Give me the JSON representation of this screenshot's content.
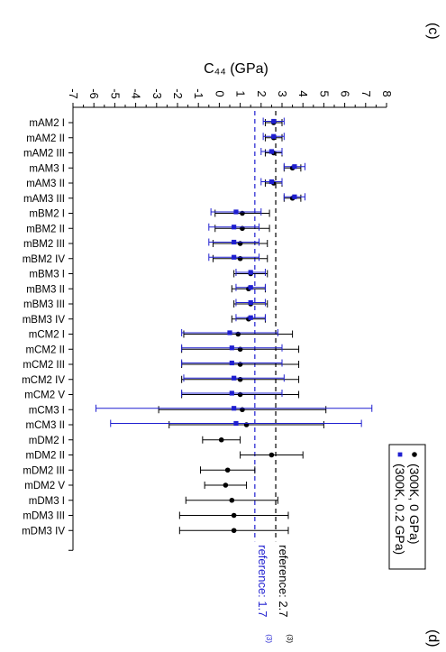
{
  "panel_labels": {
    "top": "(c)",
    "bottom": "(d)"
  },
  "chart_data": {
    "type": "scatter",
    "orientation": "horizontal-errorbars",
    "title": "",
    "xlabel": "C₄₄ (GPa)",
    "xlim": [
      -7,
      8
    ],
    "xticks": [
      "-7",
      "-6",
      "-5",
      "-4",
      "-3",
      "-2",
      "-1",
      "0",
      "1",
      "2",
      "3",
      "4",
      "5",
      "6",
      "7",
      "8"
    ],
    "categories": [
      "mAM2 I",
      "mAM2 II",
      "mAM2 III",
      "mAM3 I",
      "mAM3 II",
      "mAM3 III",
      "mBM2 I",
      "mBM2 II",
      "mBM2 III",
      "mBM2 IV",
      "mBM3 I",
      "mBM3 II",
      "mBM3 III",
      "mBM3 IV",
      "mCM2 I",
      "mCM2 II",
      "mCM2 III",
      "mCM2 IV",
      "mCM2 V",
      "mCM3 I",
      "mCM3 II",
      "mDM2 I",
      "mDM2 II",
      "mDM2 III",
      "mDM2 V",
      "mDM3 I",
      "mDM3 III",
      "mDM3 IV"
    ],
    "series": [
      {
        "name": "(300K, 0 GPa)",
        "color": "#000000",
        "marker": "circle",
        "values": [
          2.6,
          2.6,
          2.6,
          3.5,
          2.6,
          3.5,
          1.1,
          1.1,
          1.0,
          1.0,
          1.5,
          1.4,
          1.5,
          1.4,
          0.9,
          1.0,
          1.0,
          1.0,
          1.0,
          1.1,
          1.3,
          0.1,
          2.5,
          0.4,
          0.3,
          0.6,
          0.7,
          0.7
        ],
        "err_low": [
          0.4,
          0.4,
          0.4,
          0.4,
          0.4,
          0.4,
          1.3,
          1.3,
          1.3,
          1.3,
          0.8,
          0.8,
          0.8,
          0.8,
          2.6,
          2.8,
          2.8,
          2.8,
          2.8,
          4.0,
          3.7,
          0.9,
          1.5,
          1.3,
          1.0,
          2.2,
          2.6,
          2.6
        ],
        "err_high": [
          0.4,
          0.4,
          0.4,
          0.4,
          0.4,
          0.4,
          1.3,
          1.3,
          1.3,
          1.3,
          0.8,
          0.8,
          0.8,
          0.8,
          2.6,
          2.8,
          2.8,
          2.8,
          2.8,
          4.0,
          3.7,
          0.9,
          1.5,
          1.3,
          1.0,
          2.2,
          2.6,
          2.6
        ]
      },
      {
        "name": "(300K, 0.2 GPa)",
        "color": "#1f1fd0",
        "marker": "square",
        "values": [
          2.6,
          2.6,
          2.5,
          3.6,
          2.5,
          3.6,
          0.8,
          0.7,
          0.7,
          0.7,
          1.5,
          1.5,
          1.5,
          1.5,
          0.5,
          0.6,
          0.6,
          0.7,
          0.6,
          0.7,
          0.8,
          null,
          null,
          null,
          null,
          null,
          null,
          null
        ],
        "err_low": [
          0.5,
          0.5,
          0.5,
          0.5,
          0.5,
          0.5,
          1.2,
          1.2,
          1.2,
          1.2,
          0.7,
          0.7,
          0.7,
          0.7,
          2.3,
          2.4,
          2.4,
          2.4,
          2.4,
          6.6,
          6.0,
          null,
          null,
          null,
          null,
          null,
          null,
          null
        ],
        "err_high": [
          0.5,
          0.5,
          0.5,
          0.5,
          0.5,
          0.5,
          1.2,
          1.2,
          1.2,
          1.2,
          0.7,
          0.7,
          0.7,
          0.7,
          2.3,
          2.4,
          2.4,
          2.4,
          2.4,
          6.6,
          6.0,
          null,
          null,
          null,
          null,
          null,
          null,
          null
        ]
      }
    ],
    "reference_lines": [
      {
        "value": 1.7,
        "label": "reference: 1.7",
        "superscript": "(3)",
        "color": "#1f1fd0",
        "style": "dashed"
      },
      {
        "value": 2.7,
        "label": "reference: 2.7",
        "superscript": "(3)",
        "color": "#000000",
        "style": "dashed"
      }
    ],
    "legend": {
      "placement": "bottom-right",
      "entries": [
        "(300K, 0 GPa)",
        "(300K, 0.2 GPa)"
      ]
    },
    "grid": false
  }
}
